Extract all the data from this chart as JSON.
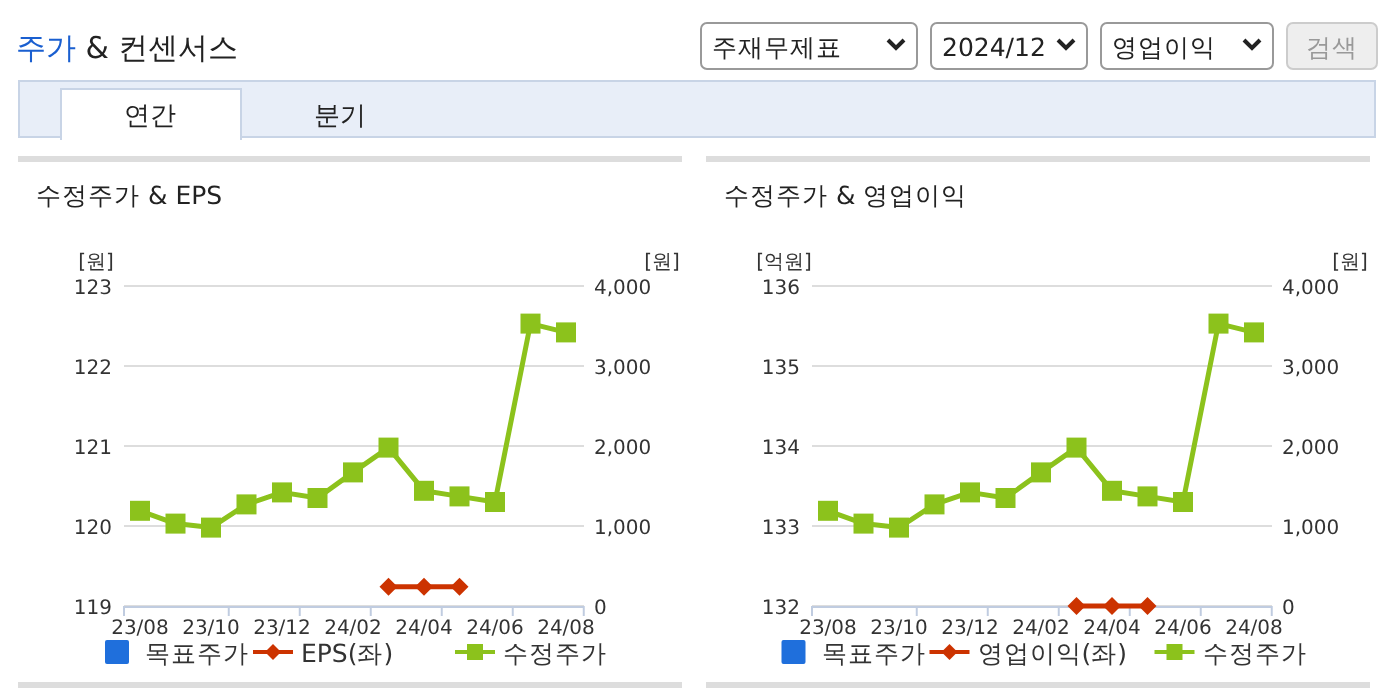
{
  "chart_data": [
    {
      "type": "other",
      "title": "주가 & 컨센서스",
      "annotations": [
        "주재무제표",
        "2024/12",
        "영업이익",
        "검색",
        "연간",
        "분기"
      ]
    },
    {
      "type": "line",
      "title": "수정주가 & EPS",
      "ylabel": "[원]",
      "y2label": "[원]",
      "categories": [
        "23/08",
        null,
        "23/10",
        null,
        "23/12",
        null,
        "24/02",
        null,
        "24/04",
        null,
        "24/06",
        null,
        "24/08"
      ],
      "ylim": [
        119,
        123
      ],
      "yticks": [
        119,
        120,
        121,
        122,
        123
      ],
      "y2lim": [
        0,
        4000
      ],
      "y2ticks": [
        0,
        {
          "value": 1000,
          "label": "1,000"
        },
        {
          "value": 2000,
          "label": "2,000"
        },
        {
          "value": 3000,
          "label": "3,000"
        },
        {
          "value": 4000,
          "label": "4,000"
        }
      ],
      "grid": "y",
      "legend": "bottom",
      "series": [
        {
          "name": "목표주가",
          "type": "bar",
          "color": "#1f6fdc",
          "values": [
            null,
            null,
            null,
            null,
            null,
            null,
            null,
            null,
            null,
            null,
            null,
            null,
            null
          ]
        },
        {
          "name": "EPS(좌)",
          "color": "#cc3300",
          "marker": "diamond",
          "values": [
            null,
            null,
            null,
            null,
            null,
            null,
            null,
            119.24,
            119.24,
            119.24,
            null,
            null,
            null
          ]
        },
        {
          "name": "수정주가",
          "color": "#8cc21c",
          "marker": "square",
          "axis": "y2",
          "values": [
            1190,
            1030,
            980,
            1270,
            1420,
            1350,
            1670,
            1980,
            1440,
            1370,
            1300,
            3530,
            3420
          ]
        }
      ]
    },
    {
      "type": "line",
      "title": "수정주가 & 영업이익",
      "ylabel": "[억원]",
      "y2label": "[원]",
      "categories": [
        "23/08",
        null,
        "23/10",
        null,
        "23/12",
        null,
        "24/02",
        null,
        "24/04",
        null,
        "24/06",
        null,
        "24/08"
      ],
      "ylim": [
        132,
        136
      ],
      "yticks": [
        132,
        133,
        134,
        135,
        136
      ],
      "y2lim": [
        0,
        4000
      ],
      "y2ticks": [
        0,
        {
          "value": 1000,
          "label": "1,000"
        },
        {
          "value": 2000,
          "label": "2,000"
        },
        {
          "value": 3000,
          "label": "3,000"
        },
        {
          "value": 4000,
          "label": "4,000"
        }
      ],
      "grid": "y",
      "legend": "bottom",
      "series": [
        {
          "name": "목표주가",
          "type": "bar",
          "color": "#1f6fdc",
          "values": [
            null,
            null,
            null,
            null,
            null,
            null,
            null,
            null,
            null,
            null,
            null,
            null,
            null
          ]
        },
        {
          "name": "영업이익(좌)",
          "color": "#cc3300",
          "marker": "diamond",
          "values": [
            null,
            null,
            null,
            null,
            null,
            null,
            null,
            132,
            132,
            132,
            null,
            null,
            null
          ]
        },
        {
          "name": "수정주가",
          "color": "#8cc21c",
          "marker": "square",
          "axis": "y2",
          "values": [
            1190,
            1030,
            980,
            1270,
            1420,
            1350,
            1670,
            1980,
            1440,
            1370,
            1300,
            3530,
            3420
          ]
        }
      ]
    }
  ]
}
